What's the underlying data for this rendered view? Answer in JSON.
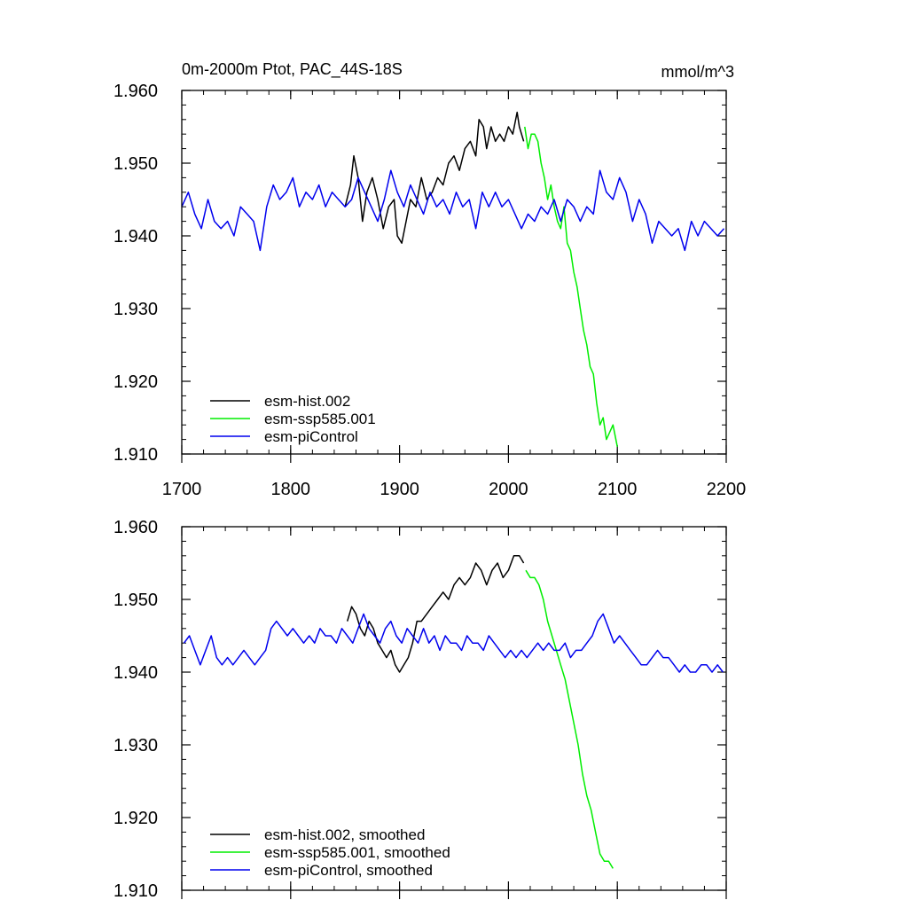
{
  "colors": {
    "hist": "#000000",
    "ssp": "#00ee00",
    "pictrl": "#0000ee",
    "frame": "#000000"
  },
  "chart_data": [
    {
      "type": "line",
      "title": "0m-2000m Ptot, PAC_44S-18S",
      "units": "mmol/m^3",
      "xlim": [
        1700,
        2200
      ],
      "ylim": [
        1.91,
        1.96
      ],
      "xticks": [
        1700,
        1800,
        1900,
        2000,
        2100,
        2200
      ],
      "xtick_labels": [
        "1700",
        "1800",
        "1900",
        "2000",
        "2100",
        "2200"
      ],
      "yticks": [
        1.91,
        1.92,
        1.93,
        1.94,
        1.95,
        1.96
      ],
      "ytick_labels": [
        "1.910",
        "1.920",
        "1.930",
        "1.940",
        "1.950",
        "1.960"
      ],
      "legend": [
        "esm-hist.002",
        "esm-ssp585.001",
        "esm-piControl"
      ],
      "series": [
        {
          "name": "esm-hist.002",
          "color_key": "hist",
          "x": [
            1850,
            1855,
            1858,
            1862,
            1866,
            1870,
            1875,
            1880,
            1885,
            1890,
            1895,
            1898,
            1902,
            1906,
            1910,
            1915,
            1920,
            1925,
            1930,
            1935,
            1940,
            1945,
            1950,
            1955,
            1960,
            1965,
            1970,
            1973,
            1977,
            1980,
            1984,
            1988,
            1992,
            1996,
            2000,
            2004,
            2008,
            2010,
            2014
          ],
          "y": [
            1.944,
            1.947,
            1.951,
            1.948,
            1.942,
            1.946,
            1.948,
            1.945,
            1.941,
            1.944,
            1.945,
            1.94,
            1.939,
            1.942,
            1.945,
            1.944,
            1.948,
            1.945,
            1.946,
            1.948,
            1.947,
            1.95,
            1.951,
            1.949,
            1.952,
            1.953,
            1.951,
            1.956,
            1.955,
            1.952,
            1.955,
            1.953,
            1.954,
            1.953,
            1.955,
            1.954,
            1.957,
            1.955,
            1.953
          ]
        },
        {
          "name": "esm-ssp585.001",
          "color_key": "ssp",
          "x": [
            2015,
            2018,
            2021,
            2024,
            2027,
            2030,
            2033,
            2036,
            2039,
            2042,
            2045,
            2048,
            2051,
            2054,
            2057,
            2060,
            2063,
            2066,
            2069,
            2072,
            2075,
            2078,
            2081,
            2084,
            2087,
            2090,
            2093,
            2096,
            2100
          ],
          "y": [
            1.955,
            1.952,
            1.954,
            1.954,
            1.953,
            1.95,
            1.948,
            1.945,
            1.947,
            1.944,
            1.942,
            1.941,
            1.944,
            1.939,
            1.938,
            1.935,
            1.933,
            1.93,
            1.927,
            1.925,
            1.922,
            1.921,
            1.917,
            1.914,
            1.915,
            1.912,
            1.913,
            1.914,
            1.911
          ]
        },
        {
          "name": "esm-piControl",
          "color_key": "pictrl",
          "x": [
            1700,
            1706,
            1712,
            1718,
            1724,
            1730,
            1736,
            1742,
            1748,
            1754,
            1760,
            1766,
            1772,
            1778,
            1784,
            1790,
            1796,
            1802,
            1808,
            1814,
            1820,
            1826,
            1832,
            1838,
            1844,
            1850,
            1856,
            1862,
            1868,
            1874,
            1880,
            1886,
            1892,
            1898,
            1904,
            1910,
            1916,
            1922,
            1928,
            1934,
            1940,
            1946,
            1952,
            1958,
            1964,
            1970,
            1976,
            1982,
            1988,
            1994,
            2000,
            2006,
            2012,
            2018,
            2024,
            2030,
            2036,
            2042,
            2048,
            2054,
            2060,
            2066,
            2072,
            2078,
            2084,
            2090,
            2096,
            2102,
            2108,
            2114,
            2120,
            2126,
            2132,
            2138,
            2144,
            2150,
            2156,
            2162,
            2168,
            2174,
            2180,
            2186,
            2192,
            2198
          ],
          "y": [
            1.944,
            1.946,
            1.943,
            1.941,
            1.945,
            1.942,
            1.941,
            1.942,
            1.94,
            1.944,
            1.943,
            1.942,
            1.938,
            1.944,
            1.947,
            1.945,
            1.946,
            1.948,
            1.944,
            1.946,
            1.945,
            1.947,
            1.944,
            1.946,
            1.945,
            1.944,
            1.945,
            1.948,
            1.946,
            1.944,
            1.942,
            1.945,
            1.949,
            1.946,
            1.944,
            1.947,
            1.945,
            1.943,
            1.946,
            1.944,
            1.945,
            1.943,
            1.946,
            1.944,
            1.945,
            1.941,
            1.946,
            1.944,
            1.946,
            1.944,
            1.945,
            1.943,
            1.941,
            1.943,
            1.942,
            1.944,
            1.943,
            1.945,
            1.942,
            1.945,
            1.944,
            1.942,
            1.944,
            1.943,
            1.949,
            1.946,
            1.945,
            1.948,
            1.946,
            1.942,
            1.945,
            1.943,
            1.939,
            1.942,
            1.941,
            1.94,
            1.941,
            1.938,
            1.942,
            1.94,
            1.942,
            1.941,
            1.94,
            1.941
          ]
        }
      ]
    },
    {
      "type": "line",
      "xlim": [
        1700,
        2200
      ],
      "ylim": [
        1.91,
        1.96
      ],
      "yticks": [
        1.91,
        1.92,
        1.93,
        1.94,
        1.95,
        1.96
      ],
      "ytick_labels": [
        "1.910",
        "1.920",
        "1.930",
        "1.940",
        "1.950",
        "1.960"
      ],
      "legend": [
        "esm-hist.002, smoothed",
        "esm-ssp585.001, smoothed",
        "esm-piControl, smoothed"
      ],
      "series": [
        {
          "name": "esm-hist.002, smoothed",
          "color_key": "hist",
          "x": [
            1852,
            1856,
            1860,
            1864,
            1868,
            1872,
            1876,
            1880,
            1884,
            1888,
            1892,
            1896,
            1900,
            1904,
            1908,
            1912,
            1916,
            1920,
            1925,
            1930,
            1935,
            1940,
            1945,
            1950,
            1955,
            1960,
            1965,
            1970,
            1975,
            1980,
            1985,
            1990,
            1995,
            2000,
            2005,
            2010,
            2014
          ],
          "y": [
            1.947,
            1.949,
            1.948,
            1.946,
            1.945,
            1.947,
            1.946,
            1.944,
            1.943,
            1.942,
            1.943,
            1.941,
            1.94,
            1.941,
            1.942,
            1.944,
            1.947,
            1.947,
            1.948,
            1.949,
            1.95,
            1.951,
            1.95,
            1.952,
            1.953,
            1.952,
            1.953,
            1.955,
            1.954,
            1.952,
            1.954,
            1.955,
            1.953,
            1.954,
            1.956,
            1.956,
            1.955
          ]
        },
        {
          "name": "esm-ssp585.001, smoothed",
          "color_key": "ssp",
          "x": [
            2016,
            2020,
            2024,
            2028,
            2032,
            2036,
            2040,
            2044,
            2048,
            2052,
            2056,
            2060,
            2064,
            2068,
            2072,
            2076,
            2080,
            2084,
            2088,
            2092,
            2096
          ],
          "y": [
            1.954,
            1.953,
            1.953,
            1.952,
            1.95,
            1.947,
            1.945,
            1.943,
            1.941,
            1.939,
            1.936,
            1.933,
            1.93,
            1.926,
            1.923,
            1.921,
            1.918,
            1.915,
            1.914,
            1.914,
            1.913
          ]
        },
        {
          "name": "esm-piControl, smoothed",
          "color_key": "pictrl",
          "x": [
            1702,
            1707,
            1712,
            1717,
            1722,
            1727,
            1732,
            1737,
            1742,
            1747,
            1752,
            1757,
            1762,
            1767,
            1772,
            1777,
            1782,
            1787,
            1792,
            1797,
            1802,
            1807,
            1812,
            1817,
            1822,
            1827,
            1832,
            1837,
            1842,
            1847,
            1852,
            1857,
            1862,
            1867,
            1872,
            1877,
            1882,
            1887,
            1892,
            1897,
            1902,
            1907,
            1912,
            1917,
            1922,
            1927,
            1932,
            1937,
            1942,
            1947,
            1952,
            1957,
            1962,
            1967,
            1972,
            1977,
            1982,
            1987,
            1992,
            1997,
            2002,
            2007,
            2012,
            2017,
            2022,
            2027,
            2032,
            2037,
            2042,
            2047,
            2052,
            2057,
            2062,
            2067,
            2072,
            2077,
            2082,
            2087,
            2092,
            2097,
            2102,
            2107,
            2112,
            2117,
            2122,
            2127,
            2132,
            2137,
            2142,
            2147,
            2152,
            2157,
            2162,
            2167,
            2172,
            2177,
            2182,
            2187,
            2192,
            2197
          ],
          "y": [
            1.944,
            1.945,
            1.943,
            1.941,
            1.943,
            1.945,
            1.942,
            1.941,
            1.942,
            1.941,
            1.942,
            1.943,
            1.942,
            1.941,
            1.942,
            1.943,
            1.946,
            1.947,
            1.946,
            1.945,
            1.946,
            1.945,
            1.944,
            1.945,
            1.944,
            1.946,
            1.945,
            1.945,
            1.944,
            1.946,
            1.945,
            1.944,
            1.946,
            1.948,
            1.946,
            1.945,
            1.944,
            1.946,
            1.947,
            1.945,
            1.944,
            1.946,
            1.945,
            1.944,
            1.946,
            1.944,
            1.945,
            1.943,
            1.945,
            1.944,
            1.944,
            1.943,
            1.945,
            1.944,
            1.944,
            1.943,
            1.945,
            1.944,
            1.943,
            1.942,
            1.943,
            1.942,
            1.943,
            1.942,
            1.943,
            1.944,
            1.943,
            1.944,
            1.943,
            1.943,
            1.944,
            1.942,
            1.943,
            1.943,
            1.944,
            1.945,
            1.947,
            1.948,
            1.946,
            1.944,
            1.945,
            1.944,
            1.943,
            1.942,
            1.941,
            1.941,
            1.942,
            1.943,
            1.942,
            1.942,
            1.941,
            1.94,
            1.941,
            1.94,
            1.94,
            1.941,
            1.941,
            1.94,
            1.941,
            1.94
          ]
        }
      ]
    }
  ]
}
